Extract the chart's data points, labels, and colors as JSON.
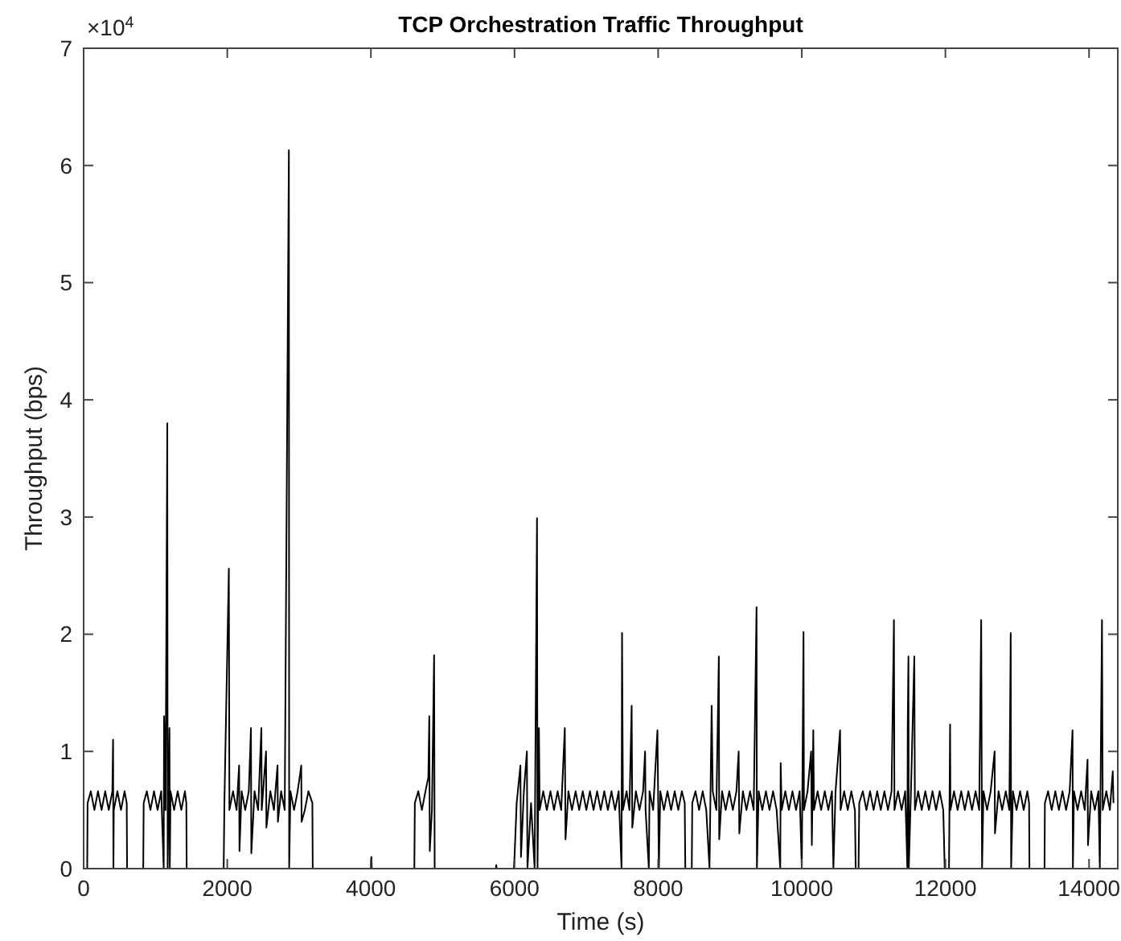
{
  "chart_data": {
    "type": "line",
    "title": "TCP Orchestration Traffic Throughput",
    "xlabel": "Time (s)",
    "ylabel": "Throughput (bps)",
    "annotations": [
      "×10$^{4}$"
    ],
    "xlim": [
      0,
      14400
    ],
    "xticks": [
      0,
      2000,
      4000,
      6000,
      8000,
      10000,
      12000,
      14000
    ],
    "ylim": [
      0,
      7
    ],
    "yticks": [
      0,
      1,
      2,
      3,
      4,
      5,
      6,
      7
    ],
    "series": [
      {
        "color": "#000000",
        "x": [
          0,
          50,
          55,
          100,
          150,
          200,
          250,
          300,
          350,
          400,
          410,
          415,
          420,
          470,
          520,
          570,
          600,
          605,
          830,
          836,
          880,
          930,
          980,
          1030,
          1080,
          1115,
          1120,
          1140,
          1165,
          1170,
          1195,
          1200,
          1210,
          1260,
          1310,
          1360,
          1410,
          1430,
          1435,
          1950,
          1960,
          2022,
          2030,
          2080,
          2130,
          2165,
          2170,
          2200,
          2250,
          2300,
          2330,
          2335,
          2380,
          2430,
          2475,
          2480,
          2540,
          2545,
          2600,
          2650,
          2700,
          2705,
          2750,
          2800,
          2858,
          2862,
          2880,
          2930,
          2980,
          3030,
          3035,
          3080,
          3130,
          3185,
          3190,
          4000,
          4007,
          4012,
          4605,
          4612,
          4660,
          4710,
          4760,
          4800,
          4813,
          4820,
          4850,
          4880,
          4888,
          5740,
          5746,
          5750,
          5990,
          6000,
          6030,
          6082,
          6090,
          6130,
          6172,
          6180,
          6230,
          6280,
          6313,
          6320,
          6340,
          6350,
          6400,
          6450,
          6500,
          6550,
          6600,
          6650,
          6700,
          6710,
          6750,
          6800,
          6850,
          6900,
          6950,
          7000,
          7050,
          7100,
          7150,
          7200,
          7250,
          7300,
          7350,
          7400,
          7450,
          7490,
          7497,
          7510,
          7560,
          7600,
          7631,
          7640,
          7690,
          7740,
          7790,
          7818,
          7825,
          7870,
          7880,
          7930,
          7990,
          8010,
          8030,
          8080,
          8130,
          8180,
          8230,
          8280,
          8330,
          8370,
          8378,
          8468,
          8475,
          8520,
          8570,
          8620,
          8670,
          8715,
          8745,
          8760,
          8810,
          8845,
          8850,
          8890,
          8940,
          8990,
          9040,
          9090,
          9121,
          9130,
          9180,
          9230,
          9280,
          9330,
          9370,
          9375,
          9400,
          9450,
          9500,
          9550,
          9600,
          9650,
          9700,
          9706,
          9720,
          9770,
          9820,
          9870,
          9920,
          9970,
          10000,
          10024,
          10030,
          10080,
          10130,
          10140,
          10160,
          10170,
          10220,
          10270,
          10320,
          10370,
          10420,
          10440,
          10470,
          10533,
          10540,
          10590,
          10640,
          10690,
          10740,
          10750,
          10790,
          10800,
          10850,
          10900,
          10950,
          11000,
          11050,
          11100,
          11150,
          11200,
          11250,
          11283,
          11290,
          11340,
          11390,
          11440,
          11470,
          11475,
          11485,
          11490,
          11520,
          11567,
          11575,
          11620,
          11670,
          11720,
          11770,
          11820,
          11870,
          11920,
          11970,
          11990,
          12050,
          12065,
          12070,
          12120,
          12170,
          12220,
          12270,
          12320,
          12370,
          12420,
          12470,
          12498,
          12510,
          12530,
          12580,
          12630,
          12685,
          12690,
          12740,
          12790,
          12840,
          12890,
          12909,
          12915,
          12940,
          12990,
          13040,
          13090,
          13140,
          13165,
          13170,
          13380,
          13385,
          13430,
          13480,
          13530,
          13580,
          13630,
          13680,
          13730,
          13770,
          13775,
          13790,
          13840,
          13890,
          13940,
          13979,
          13985,
          14030,
          14080,
          14130,
          14150,
          14180,
          14190,
          14240,
          14290,
          14330,
          14340
        ],
        "values": [
          0,
          0,
          0.56,
          0.66,
          0.5,
          0.66,
          0.5,
          0.66,
          0.5,
          0.66,
          1.1,
          0,
          0.5,
          0.66,
          0.5,
          0.66,
          0.56,
          0,
          0,
          0.56,
          0.66,
          0.5,
          0.66,
          0.5,
          0.66,
          0,
          1.3,
          0.5,
          3.8,
          0,
          1.2,
          0,
          0.66,
          0.5,
          0.66,
          0.5,
          0.66,
          0.56,
          0,
          0,
          0.56,
          2.56,
          0.5,
          0.66,
          0.5,
          0.88,
          0.15,
          0.66,
          0.5,
          0.66,
          1.2,
          0.13,
          0.66,
          0.5,
          1.2,
          0.5,
          1,
          0.35,
          0.66,
          0.5,
          0.88,
          0.4,
          0.66,
          0.5,
          6.13,
          0,
          0.66,
          0.5,
          0.66,
          0.88,
          0.4,
          0.5,
          0.66,
          0.56,
          0,
          0,
          0.1,
          0,
          0,
          0.56,
          0.66,
          0.5,
          0.66,
          0.78,
          1.3,
          0.15,
          0.5,
          1.82,
          0,
          0,
          0.03,
          0,
          0,
          0.1,
          0.56,
          0.88,
          0.1,
          0.66,
          1,
          0,
          0.56,
          0,
          2.99,
          0,
          1.2,
          0.5,
          0.66,
          0.5,
          0.66,
          0.5,
          0.66,
          0.5,
          1.2,
          0.25,
          0.66,
          0.5,
          0.66,
          0.5,
          0.66,
          0.5,
          0.66,
          0.5,
          0.66,
          0.5,
          0.66,
          0.5,
          0.66,
          0.5,
          0.66,
          0,
          2.01,
          0.5,
          0.66,
          0.5,
          1.39,
          0.35,
          0.66,
          0.5,
          0.66,
          1,
          0.5,
          0,
          0.66,
          0.5,
          1.18,
          0,
          0.66,
          0.5,
          0.66,
          0.5,
          0.66,
          0.5,
          0.66,
          0.56,
          0,
          0,
          0.56,
          0.66,
          0.5,
          0.66,
          0.5,
          0,
          1.39,
          0.66,
          0.5,
          1.81,
          0.25,
          0.66,
          0.5,
          0.66,
          0.5,
          0.66,
          1,
          0.3,
          0.66,
          0.5,
          0.66,
          0.5,
          2.23,
          0,
          0.66,
          0.5,
          0.66,
          0.5,
          0.66,
          0.5,
          0,
          0.9,
          0.5,
          0.66,
          0.5,
          0.66,
          0.5,
          0.66,
          0,
          2.02,
          0.5,
          0.66,
          1,
          0.2,
          1.18,
          0.5,
          0.66,
          0.5,
          0.66,
          0.5,
          0.66,
          0,
          0.66,
          1.18,
          0.5,
          0.66,
          0.5,
          0.66,
          0.5,
          0,
          0,
          0.56,
          0.66,
          0.5,
          0.66,
          0.5,
          0.66,
          0.5,
          0.66,
          0.5,
          0.66,
          2.12,
          0.5,
          0.66,
          0.5,
          0.66,
          0,
          1.23,
          1.81,
          0,
          0.66,
          1.81,
          0.5,
          0.66,
          0.5,
          0.66,
          0.5,
          0.66,
          0.5,
          0.66,
          0.5,
          0,
          0,
          1.23,
          0.5,
          0.66,
          0.5,
          0.66,
          0.5,
          0.66,
          0.5,
          0.66,
          0.5,
          2.12,
          0,
          0.66,
          0.5,
          0.66,
          1,
          0.3,
          0.66,
          0.5,
          0.66,
          0.5,
          2.01,
          0,
          0.66,
          0.5,
          0.66,
          0.5,
          0.66,
          0.56,
          0,
          0,
          0.56,
          0.66,
          0.5,
          0.66,
          0.5,
          0.66,
          0.5,
          0.66,
          1.18,
          0,
          0.66,
          0.5,
          0.66,
          0.5,
          0.93,
          0.2,
          0.66,
          0.5,
          0.66,
          0,
          2.12,
          0.5,
          0.66,
          0.5,
          0.83,
          0.56
        ]
      }
    ]
  }
}
